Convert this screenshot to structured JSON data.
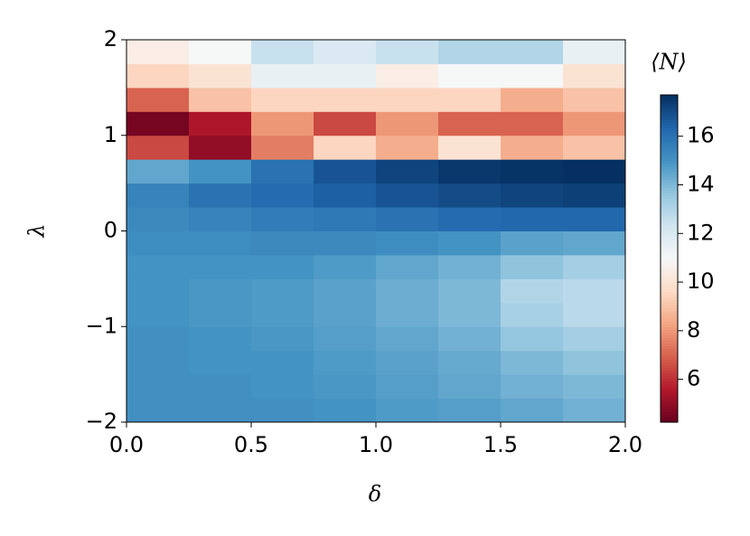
{
  "chart_data": {
    "type": "heatmap",
    "xlabel": "δ",
    "ylabel": "λ",
    "colorbar_label": "⟨N⟩",
    "colormap": "RdBu",
    "xbins": [
      0,
      0.25,
      0.5,
      0.75,
      1.0,
      1.25,
      1.5,
      1.75,
      2.0
    ],
    "ybins": [
      -2,
      -1.75,
      -1.5,
      -1.25,
      -1,
      -0.75,
      -0.5,
      -0.25,
      0,
      0.25,
      0.5,
      0.75,
      1,
      1.25,
      1.5,
      1.75,
      2
    ],
    "z": [
      [
        15.1,
        15.1,
        15.1,
        15.0,
        14.8,
        14.7,
        14.5,
        14.2
      ],
      [
        15.1,
        15.1,
        15.0,
        14.9,
        14.7,
        14.5,
        14.2,
        14.0
      ],
      [
        15.1,
        15.0,
        15.0,
        14.8,
        14.6,
        14.4,
        14.0,
        13.7
      ],
      [
        15.1,
        15.0,
        14.9,
        14.7,
        14.5,
        14.2,
        13.6,
        13.3
      ],
      [
        15.0,
        14.9,
        14.8,
        14.6,
        14.3,
        14.0,
        13.2,
        12.8
      ],
      [
        15.0,
        14.9,
        14.8,
        14.6,
        14.3,
        14.0,
        13.0,
        12.8
      ],
      [
        15.0,
        15.0,
        15.0,
        14.8,
        14.5,
        14.2,
        13.7,
        13.3
      ],
      [
        15.2,
        15.2,
        15.3,
        15.3,
        15.2,
        15.0,
        14.6,
        14.5
      ],
      [
        15.3,
        15.5,
        15.7,
        15.8,
        16.0,
        16.2,
        16.3,
        16.3
      ],
      [
        15.5,
        16.0,
        16.2,
        16.5,
        16.8,
        17.0,
        17.2,
        17.3
      ],
      [
        14.5,
        15.0,
        16.0,
        16.8,
        17.2,
        17.5,
        17.6,
        17.7
      ],
      [
        6.5,
        5.0,
        7.5,
        9.5,
        8.5,
        10.0,
        8.5,
        9.0
      ],
      [
        4.5,
        5.5,
        8.0,
        6.5,
        8.0,
        7.0,
        7.0,
        8.0
      ],
      [
        7.0,
        9.0,
        9.5,
        9.5,
        9.5,
        9.5,
        8.5,
        9.0
      ],
      [
        9.5,
        10.0,
        11.5,
        11.5,
        10.5,
        11.0,
        11.0,
        10.0
      ],
      [
        10.5,
        11.0,
        12.5,
        12.0,
        12.5,
        13.0,
        13.0,
        11.5
      ]
    ],
    "xlim": [
      0,
      2.0
    ],
    "ylim": [
      -2,
      2
    ],
    "zlim": [
      4.24,
      17.7
    ],
    "xticks": [
      {
        "value": 0,
        "label": "0.0"
      },
      {
        "value": 0.5,
        "label": "0.5"
      },
      {
        "value": 1.0,
        "label": "1.0"
      },
      {
        "value": 1.5,
        "label": "1.5"
      },
      {
        "value": 2.0,
        "label": "2.0"
      }
    ],
    "yticks": [
      {
        "value": -2,
        "label": "−2"
      },
      {
        "value": -1,
        "label": "−1"
      },
      0,
      1,
      2
    ],
    "zticks": [
      6,
      8,
      10,
      12,
      14,
      16
    ]
  }
}
